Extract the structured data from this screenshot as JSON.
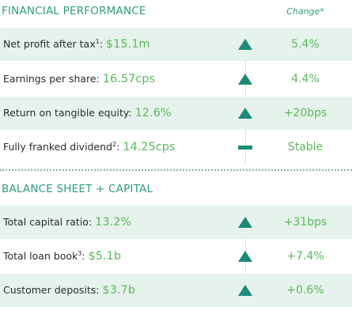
{
  "sections": [
    {
      "title": "FINANCIAL PERFORMANCE",
      "change_header": "Change*",
      "rows": [
        {
          "label": "Net profit after tax",
          "sup": "1",
          "sep": ": ",
          "value": "$15.1m",
          "trend": "up",
          "change": "5.4%"
        },
        {
          "label": "Earnings per share:",
          "sup": "",
          "sep": " ",
          "value": "16.57cps",
          "trend": "up",
          "change": "4.4%"
        },
        {
          "label": "Return on tangible equity:",
          "sup": "",
          "sep": " ",
          "value": "12.6%",
          "trend": "up",
          "change": "+20bps"
        },
        {
          "label": "Fully franked dividend",
          "sup": "2",
          "sep": ": ",
          "value": "14.25cps",
          "trend": "flat",
          "change": "Stable"
        }
      ]
    },
    {
      "title": "BALANCE SHEET + CAPITAL",
      "change_header": "",
      "rows": [
        {
          "label": "Total capital ratio:",
          "sup": "",
          "sep": " ",
          "value": "13.2%",
          "trend": "up",
          "change": "+31bps"
        },
        {
          "label": "Total loan book",
          "sup": "3",
          "sep": ": ",
          "value": "$5.1b",
          "trend": "up",
          "change": "+7.4%"
        },
        {
          "label": "Customer deposits:",
          "sup": "",
          "sep": " ",
          "value": "$3.7b",
          "trend": "up",
          "change": "+0.6%"
        }
      ]
    }
  ],
  "colors": {
    "heading": "#2e9e80",
    "value": "#5cb85c",
    "icon": "#1d8a78",
    "shade": "#e6f3ec"
  },
  "icons": {
    "up": "triangle-up-icon",
    "flat": "dash-icon"
  }
}
